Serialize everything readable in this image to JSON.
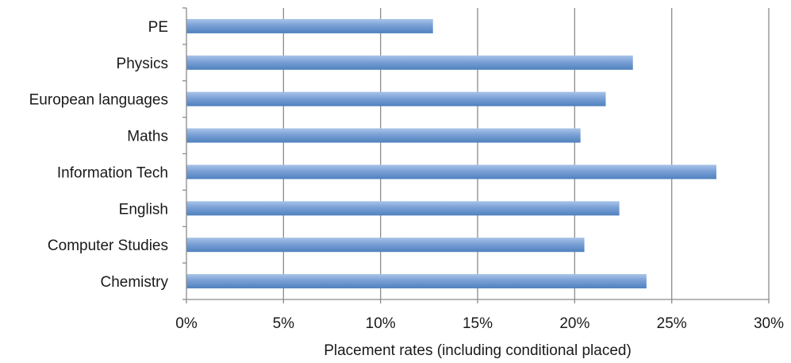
{
  "chart_data": {
    "type": "bar",
    "orientation": "horizontal",
    "categories": [
      "PE",
      "Physics",
      "European languages",
      "Maths",
      "Information Tech",
      "English",
      "Computer Studies",
      "Chemistry"
    ],
    "values": [
      12.7,
      23.0,
      21.6,
      20.3,
      27.3,
      22.3,
      20.5,
      23.7
    ],
    "xlabel": "Placement rates (including conditional placed)",
    "ylabel": "",
    "xlim": [
      0,
      30
    ],
    "xticks": [
      0,
      5,
      10,
      15,
      20,
      25,
      30
    ],
    "xtick_labels": [
      "0%",
      "5%",
      "10%",
      "15%",
      "20%",
      "25%",
      "30%"
    ],
    "grid": "vertical",
    "bar_color": "#4f81bd",
    "bar_highlight_color": "#a9c4e8"
  }
}
